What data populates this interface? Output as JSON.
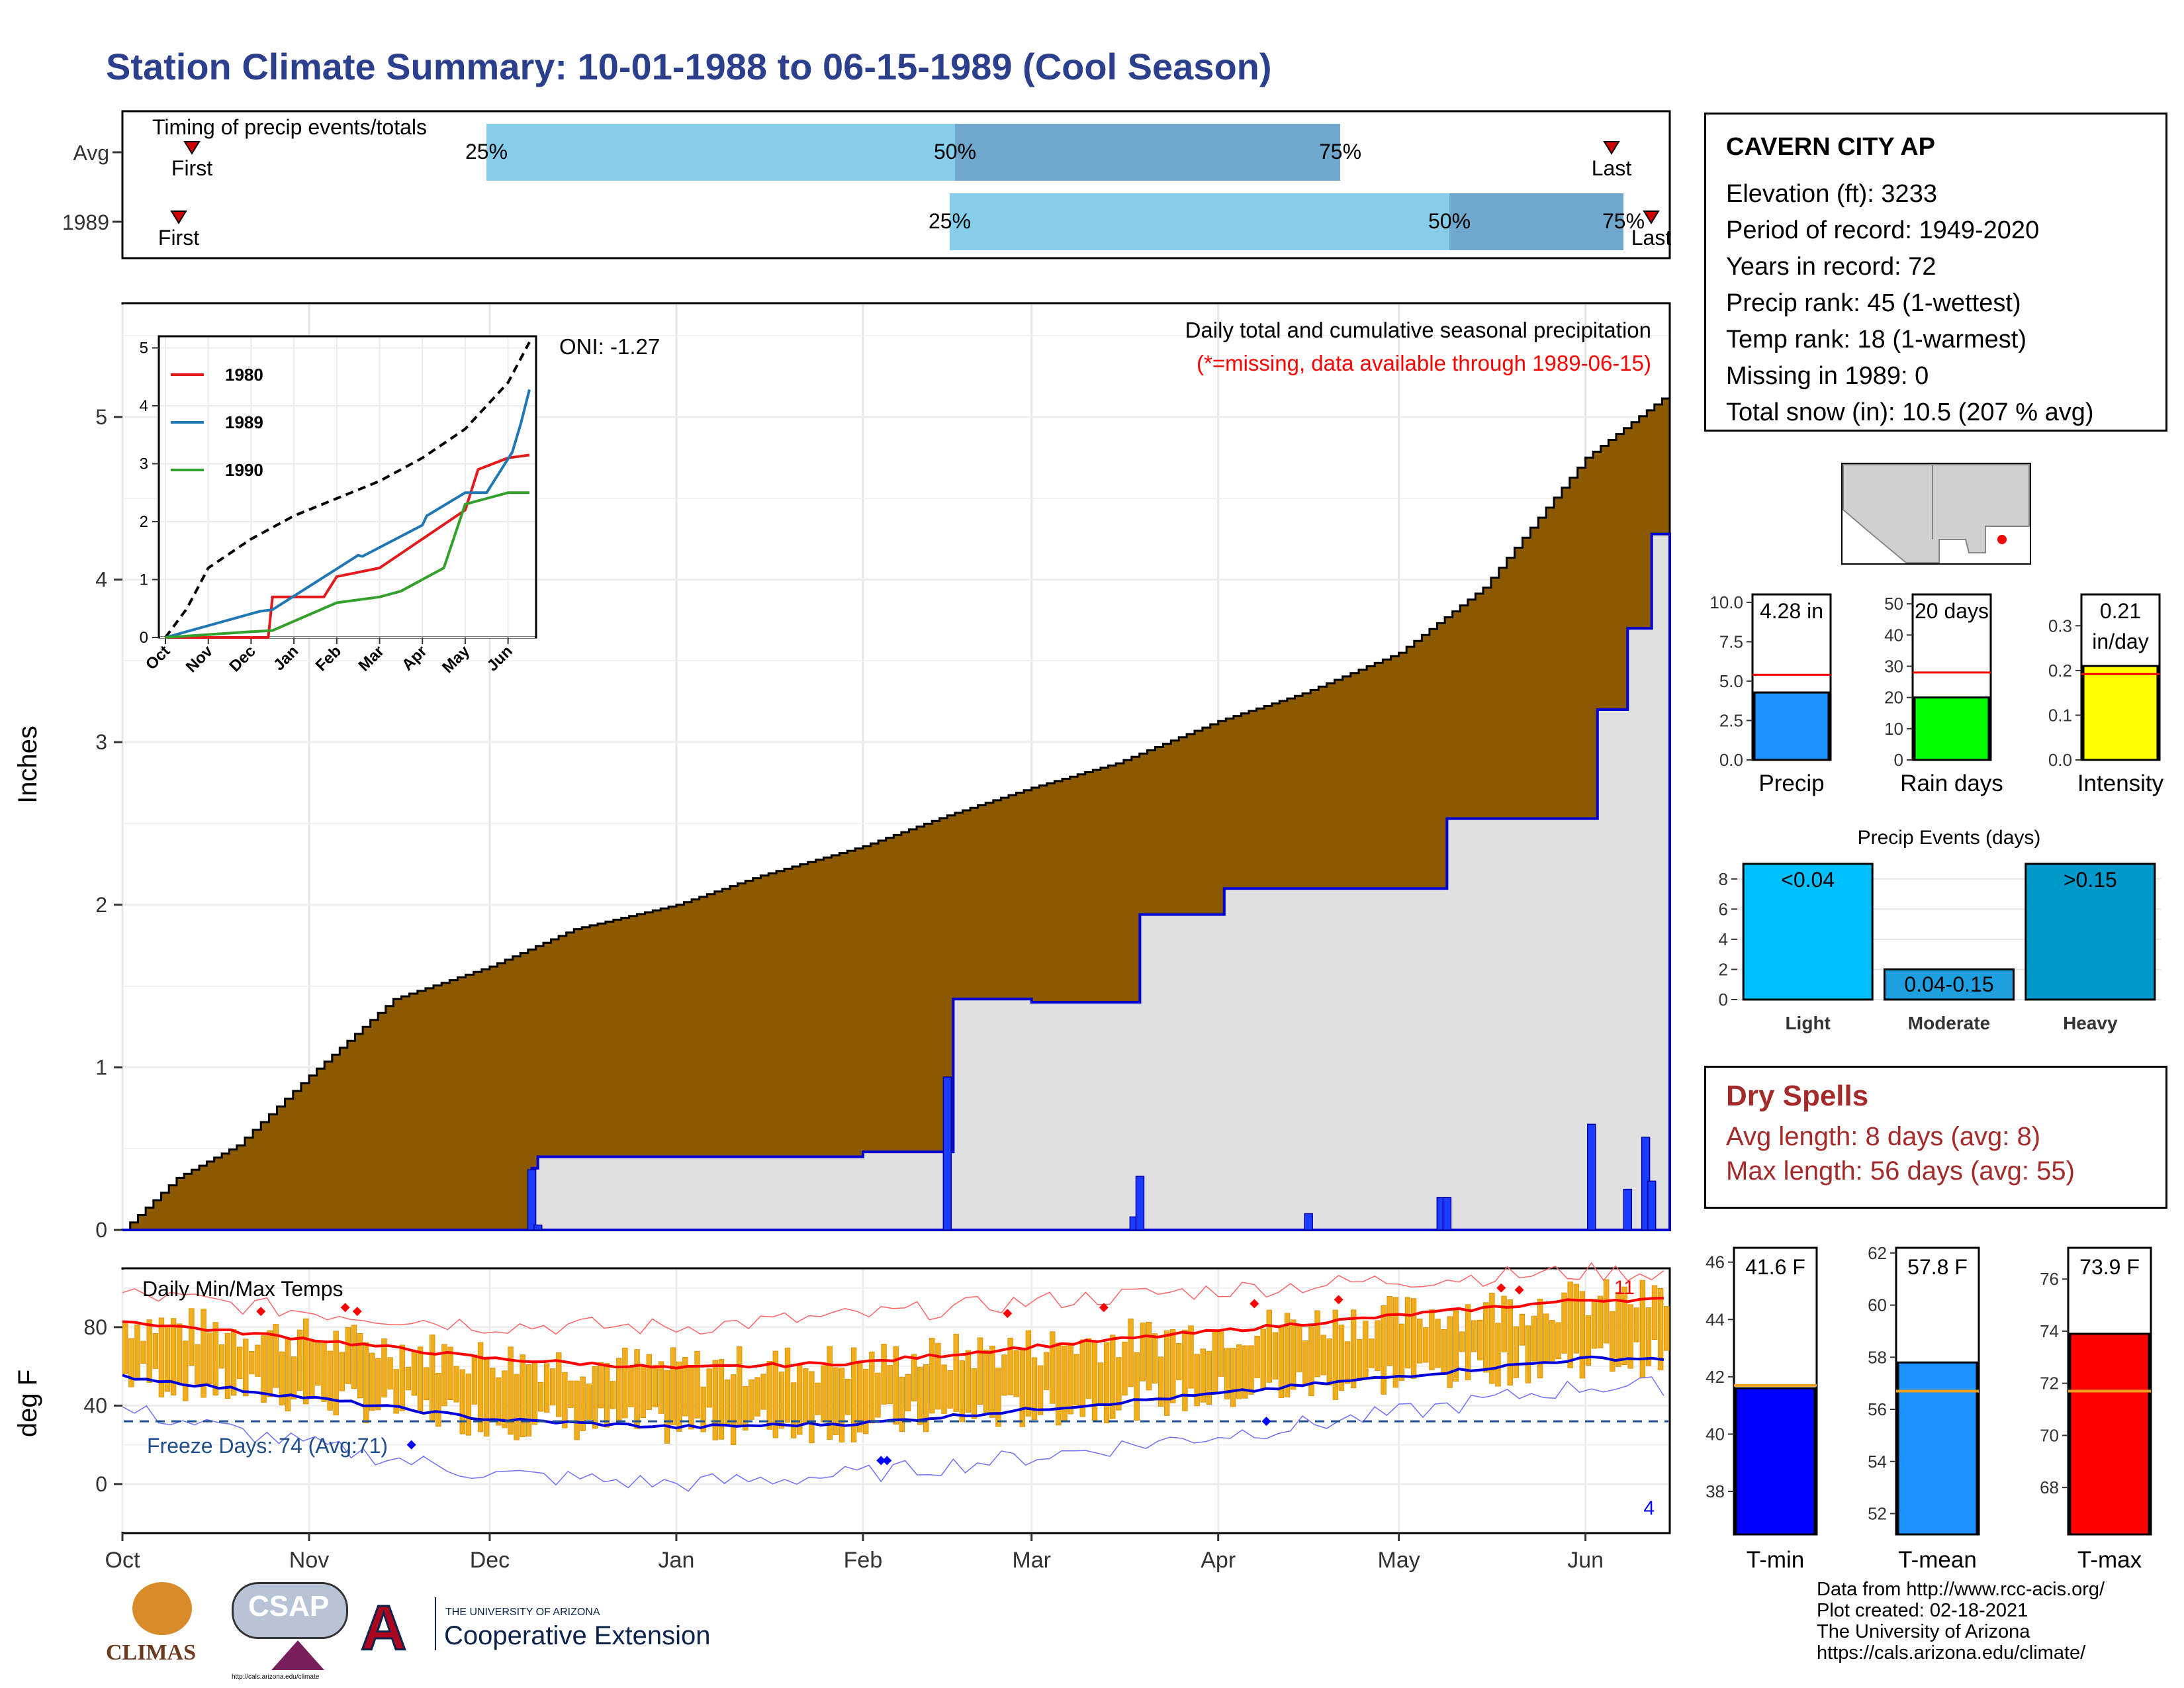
{
  "title": "Station Climate Summary: 10-01-1988 to 06-15-1989 (Cool Season)",
  "timing_panel": {
    "label": "Timing of precip events/totals",
    "rows": [
      {
        "name": "Avg",
        "first": "First",
        "last": "Last",
        "p25": "25%",
        "p50": "50%",
        "p75": "75%"
      },
      {
        "name": "1989",
        "first": "First",
        "last": "Last",
        "p25": "25%",
        "p50": "50%",
        "p75": "75%"
      }
    ]
  },
  "precip_panel": {
    "ylabel": "Inches",
    "yticks": [
      "0",
      "1",
      "2",
      "3",
      "4",
      "5"
    ],
    "caption": "Daily total and cumulative seasonal precipitation",
    "missing_note": "(*=missing, data available through 1989-06-15)",
    "oni": "ONI: -1.27"
  },
  "inset": {
    "yticks": [
      "0",
      "1",
      "2",
      "3",
      "4",
      "5"
    ],
    "xticks": [
      "Oct",
      "Nov",
      "Dec",
      "Jan",
      "Feb",
      "Mar",
      "Apr",
      "May",
      "Jun"
    ],
    "legend": [
      "1980",
      "1989",
      "1990"
    ]
  },
  "temp_panel": {
    "label": "Daily Min/Max Temps",
    "ylabel": "deg F",
    "yticks": [
      "0",
      "40",
      "80"
    ],
    "freeze": "Freeze Days: 74 (Avg:71)",
    "record_high_count": "11",
    "record_low_count": "4"
  },
  "months": [
    "Oct",
    "Nov",
    "Dec",
    "Jan",
    "Feb",
    "Mar",
    "Apr",
    "May",
    "Jun"
  ],
  "station": {
    "name": "CAVERN CITY AP",
    "lines": [
      "Elevation (ft): 3233",
      "Period of record: 1949-2020",
      "Years in record: 72",
      "Precip rank: 45 (1-wettest)",
      "Temp rank: 18 (1-warmest)",
      "Missing in 1989: 0",
      "Total snow (in): 10.5 (207 % avg)"
    ]
  },
  "mini_bars": [
    {
      "label": "Precip",
      "value_text": "4.28 in",
      "value": 4.28,
      "avg": 5.4,
      "max": 10.5,
      "color": "#1e90ff",
      "ticks": [
        "0.0",
        "2.5",
        "5.0",
        "7.5",
        "10.0"
      ]
    },
    {
      "label": "Rain days",
      "value_text": "20 days",
      "value": 20,
      "avg": 28,
      "max": 53,
      "color": "#00ff00",
      "ticks": [
        "0",
        "10",
        "20",
        "30",
        "40",
        "50"
      ]
    },
    {
      "label": "Intensity",
      "value_text": "0.21",
      "value_text2": "in/day",
      "value": 0.21,
      "avg": 0.192,
      "max": 0.37,
      "color": "#ffff00",
      "ticks": [
        "0.0",
        "0.1",
        "0.2",
        "0.3"
      ]
    }
  ],
  "events": {
    "title": "Precip Events (days)",
    "categories": [
      "Light",
      "Moderate",
      "Heavy"
    ],
    "range_labels": [
      "<0.04",
      "0.04-0.15",
      ">0.15"
    ],
    "values": [
      9,
      2,
      9
    ],
    "colors": [
      "#00bfff",
      "#1ea0e0",
      "#0099cc"
    ],
    "ticks": [
      "0",
      "2",
      "4",
      "6",
      "8"
    ]
  },
  "dry_spells": {
    "title": "Dry Spells",
    "avg": "Avg length: 8 days (avg: 8)",
    "max": "Max length: 56 days (avg: 55)"
  },
  "temp_bars": [
    {
      "label": "T-min",
      "value_text": "41.6 F",
      "value": 41.6,
      "avg": 41.7,
      "min": 36.5,
      "max": 46.5,
      "color": "#0000ff",
      "ticks": [
        "38",
        "40",
        "42",
        "44",
        "46"
      ]
    },
    {
      "label": "T-mean",
      "value_text": "57.8 F",
      "value": 57.8,
      "avg": 56.7,
      "min": 51.2,
      "max": 62.2,
      "color": "#1e90ff",
      "ticks": [
        "52",
        "54",
        "56",
        "58",
        "60",
        "62"
      ]
    },
    {
      "label": "T-max",
      "value_text": "73.9 F",
      "value": 73.9,
      "avg": 71.7,
      "min": 66.2,
      "max": 77.2,
      "color": "#ff0000",
      "ticks": [
        "68",
        "70",
        "72",
        "74",
        "76"
      ]
    }
  ],
  "logos": {
    "climas": "CLIMAS",
    "csap": "CSAP",
    "ua_small": "THE UNIVERSITY OF ARIZONA",
    "ua_big": "Cooperative Extension",
    "csap_url": "http://cals.arizona.edu/climate"
  },
  "credits": [
    "Data from http://www.rcc-acis.org/",
    "Plot created: 02-18-2021",
    "The University of Arizona",
    "https://cals.arizona.edu/climate/"
  ],
  "chart_data": [
    {
      "type": "area",
      "title": "Daily total and cumulative seasonal precipitation",
      "ylabel": "Inches",
      "ylim": [
        0,
        5.7
      ],
      "x_range": [
        "1988-10-01",
        "1989-06-15"
      ],
      "series": [
        {
          "name": "Avg",
          "x": [
            "1988-10-01",
            "1988-10-10",
            "1988-10-20",
            "1988-11-01",
            "1988-11-15",
            "1988-12-01",
            "1988-12-15",
            "1989-01-01",
            "1989-01-15",
            "1989-02-01",
            "1989-02-15",
            "1989-03-01",
            "1989-03-15",
            "1989-04-01",
            "1989-04-15",
            "1989-05-01",
            "1989-05-15",
            "1989-06-01",
            "1989-06-15"
          ],
          "values": [
            0,
            0.32,
            0.52,
            0.95,
            1.42,
            1.62,
            1.85,
            2.0,
            2.18,
            2.36,
            2.55,
            2.72,
            2.87,
            3.13,
            3.3,
            3.55,
            3.95,
            4.75,
            5.15
          ]
        },
        {
          "name": "1989",
          "x": [
            "1988-10-01",
            "1988-12-07",
            "1988-12-08",
            "1988-12-09",
            "1989-02-01",
            "1989-02-15",
            "1989-02-16",
            "1989-03-01",
            "1989-03-18",
            "1989-03-19",
            "1989-04-01",
            "1989-04-02",
            "1989-05-08",
            "1989-05-09",
            "1989-06-02",
            "1989-06-03",
            "1989-06-07",
            "1989-06-08",
            "1989-06-11",
            "1989-06-12",
            "1989-06-15"
          ],
          "values": [
            0,
            0,
            0.38,
            0.45,
            0.48,
            0.48,
            1.42,
            1.4,
            1.4,
            1.94,
            1.94,
            2.1,
            2.1,
            2.53,
            2.53,
            3.2,
            3.2,
            3.7,
            3.7,
            4.28,
            4.28
          ]
        }
      ],
      "daily_totals": {
        "x": [
          "1988-12-08",
          "1988-12-09",
          "1989-02-15",
          "1989-03-18",
          "1989-03-19",
          "1989-04-16",
          "1989-05-08",
          "1989-05-09",
          "1989-06-02",
          "1989-06-08",
          "1989-06-11",
          "1989-06-12"
        ],
        "values": [
          0.37,
          0.03,
          0.94,
          0.08,
          0.33,
          0.1,
          0.2,
          0.2,
          0.65,
          0.25,
          0.57,
          0.3
        ]
      }
    },
    {
      "type": "line",
      "title": "",
      "ylim": [
        0,
        5.2
      ],
      "x_range": [
        "Oct",
        "Jun"
      ],
      "series": [
        {
          "name": "",
          "x": [
            0,
            0.5,
            1,
            2,
            3,
            4,
            5,
            6,
            7,
            8,
            8.5
          ],
          "values": [
            0,
            0.5,
            1.2,
            1.7,
            2.1,
            2.4,
            2.7,
            3.1,
            3.6,
            4.4,
            5.1
          ]
        },
        {
          "name": "1980",
          "x": [
            0,
            2.4,
            2.5,
            3.7,
            4,
            5,
            7,
            7.3,
            8,
            8.5
          ],
          "values": [
            0,
            0,
            0.7,
            0.7,
            1.05,
            1.2,
            2.2,
            2.9,
            3.1,
            3.15
          ]
        },
        {
          "name": "1989",
          "x": [
            0,
            2.2,
            2.5,
            4.5,
            4.6,
            6,
            6.1,
            7,
            7.5,
            8.1,
            8.3,
            8.5
          ],
          "values": [
            0,
            0.45,
            0.48,
            1.42,
            1.4,
            1.94,
            2.1,
            2.5,
            2.5,
            3.2,
            3.7,
            4.28
          ]
        },
        {
          "name": "1990",
          "x": [
            0,
            2.0,
            2.5,
            4,
            5,
            5.5,
            6,
            6.5,
            7,
            7.5,
            8,
            8.5
          ],
          "values": [
            0,
            0.1,
            0.12,
            0.6,
            0.7,
            0.8,
            1.0,
            1.2,
            2.3,
            2.4,
            2.5,
            2.5
          ]
        }
      ]
    },
    {
      "type": "line",
      "title": "Daily Min/Max Temps",
      "ylabel": "deg F",
      "ylim": [
        -25,
        110
      ],
      "freeze_line": 32,
      "series": [
        {
          "name": "Avg max",
          "x": [
            "Oct",
            "Nov",
            "Dec",
            "Jan",
            "Feb",
            "Mar",
            "Apr",
            "May",
            "Jun"
          ],
          "values": [
            83,
            74,
            64,
            59,
            62,
            70,
            78,
            86,
            94
          ]
        },
        {
          "name": "Avg min",
          "x": [
            "Oct",
            "Nov",
            "Dec",
            "Jan",
            "Feb",
            "Mar",
            "Apr",
            "May",
            "Jun"
          ],
          "values": [
            55,
            44,
            33,
            29,
            31,
            38,
            46,
            55,
            64
          ]
        },
        {
          "name": "Record max",
          "x": [
            "Oct",
            "Nov",
            "Dec",
            "Jan",
            "Feb",
            "Mar",
            "Apr",
            "May",
            "Jun"
          ],
          "values": [
            97,
            88,
            81,
            80,
            86,
            93,
            99,
            104,
            108
          ]
        },
        {
          "name": "Record min",
          "x": [
            "Oct",
            "Nov",
            "Dec",
            "Jan",
            "Feb",
            "Mar",
            "Apr",
            "May",
            "Jun"
          ],
          "values": [
            38,
            20,
            5,
            0,
            5,
            14,
            25,
            36,
            50
          ]
        }
      ]
    },
    {
      "type": "bar",
      "title": "Precip Events (days)",
      "categories": [
        "Light",
        "Moderate",
        "Heavy"
      ],
      "values": [
        9,
        2,
        9
      ],
      "ylim": [
        0,
        9
      ]
    }
  ]
}
